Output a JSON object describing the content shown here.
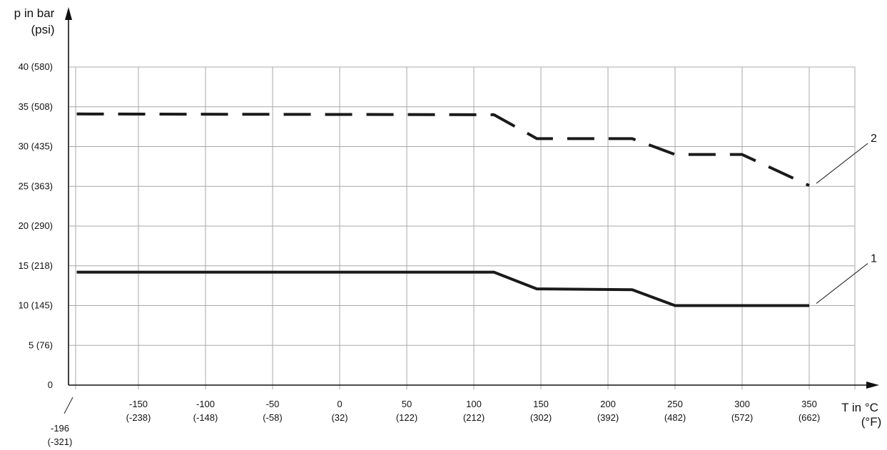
{
  "chart_data": {
    "type": "line",
    "ylabel_line1": "p in bar",
    "ylabel_line2": "(psi)",
    "xlabel_line1": "T in °C",
    "xlabel_line2": "(°F)",
    "xlim": [
      -196,
      380
    ],
    "ylim": [
      0,
      40
    ],
    "grid": true,
    "x_ticks": [
      {
        "value": -150,
        "line1": "-150",
        "line2": "(-238)"
      },
      {
        "value": -100,
        "line1": "-100",
        "line2": "(-148)"
      },
      {
        "value": -50,
        "line1": "-50",
        "line2": "(-58)"
      },
      {
        "value": 0,
        "line1": "0",
        "line2": "(32)"
      },
      {
        "value": 50,
        "line1": "50",
        "line2": "(122)"
      },
      {
        "value": 100,
        "line1": "100",
        "line2": "(212)"
      },
      {
        "value": 150,
        "line1": "150",
        "line2": "(302)"
      },
      {
        "value": 200,
        "line1": "200",
        "line2": "(392)"
      },
      {
        "value": 250,
        "line1": "250",
        "line2": "(482)"
      },
      {
        "value": 300,
        "line1": "300",
        "line2": "(572)"
      },
      {
        "value": 350,
        "line1": "350",
        "line2": "(662)"
      }
    ],
    "x_start_label": {
      "value": -196,
      "line1": "-196",
      "line2": "(-321)"
    },
    "y_ticks": [
      {
        "value": 0,
        "label": "0"
      },
      {
        "value": 5,
        "label": "5 (76)"
      },
      {
        "value": 10,
        "label": "10 (145)"
      },
      {
        "value": 15,
        "label": "15 (218)"
      },
      {
        "value": 20,
        "label": "20 (290)"
      },
      {
        "value": 25,
        "label": "25 (363)"
      },
      {
        "value": 30,
        "label": "30 (435)"
      },
      {
        "value": 35,
        "label": "35 (508)"
      },
      {
        "value": 40,
        "label": "40 (580)"
      }
    ],
    "series": [
      {
        "name": "1",
        "style": "solid",
        "color": "#1a1a1a",
        "points": [
          [
            -196,
            14.2
          ],
          [
            115,
            14.2
          ],
          [
            147,
            12.1
          ],
          [
            218,
            12.0
          ],
          [
            250,
            10.0
          ],
          [
            350,
            10.0
          ]
        ]
      },
      {
        "name": "2",
        "style": "dashed",
        "color": "#1a1a1a",
        "points": [
          [
            -196,
            34.1
          ],
          [
            115,
            34.0
          ],
          [
            147,
            31.0
          ],
          [
            218,
            31.0
          ],
          [
            250,
            29.0
          ],
          [
            300,
            29.0
          ],
          [
            350,
            25.1
          ]
        ]
      }
    ]
  }
}
